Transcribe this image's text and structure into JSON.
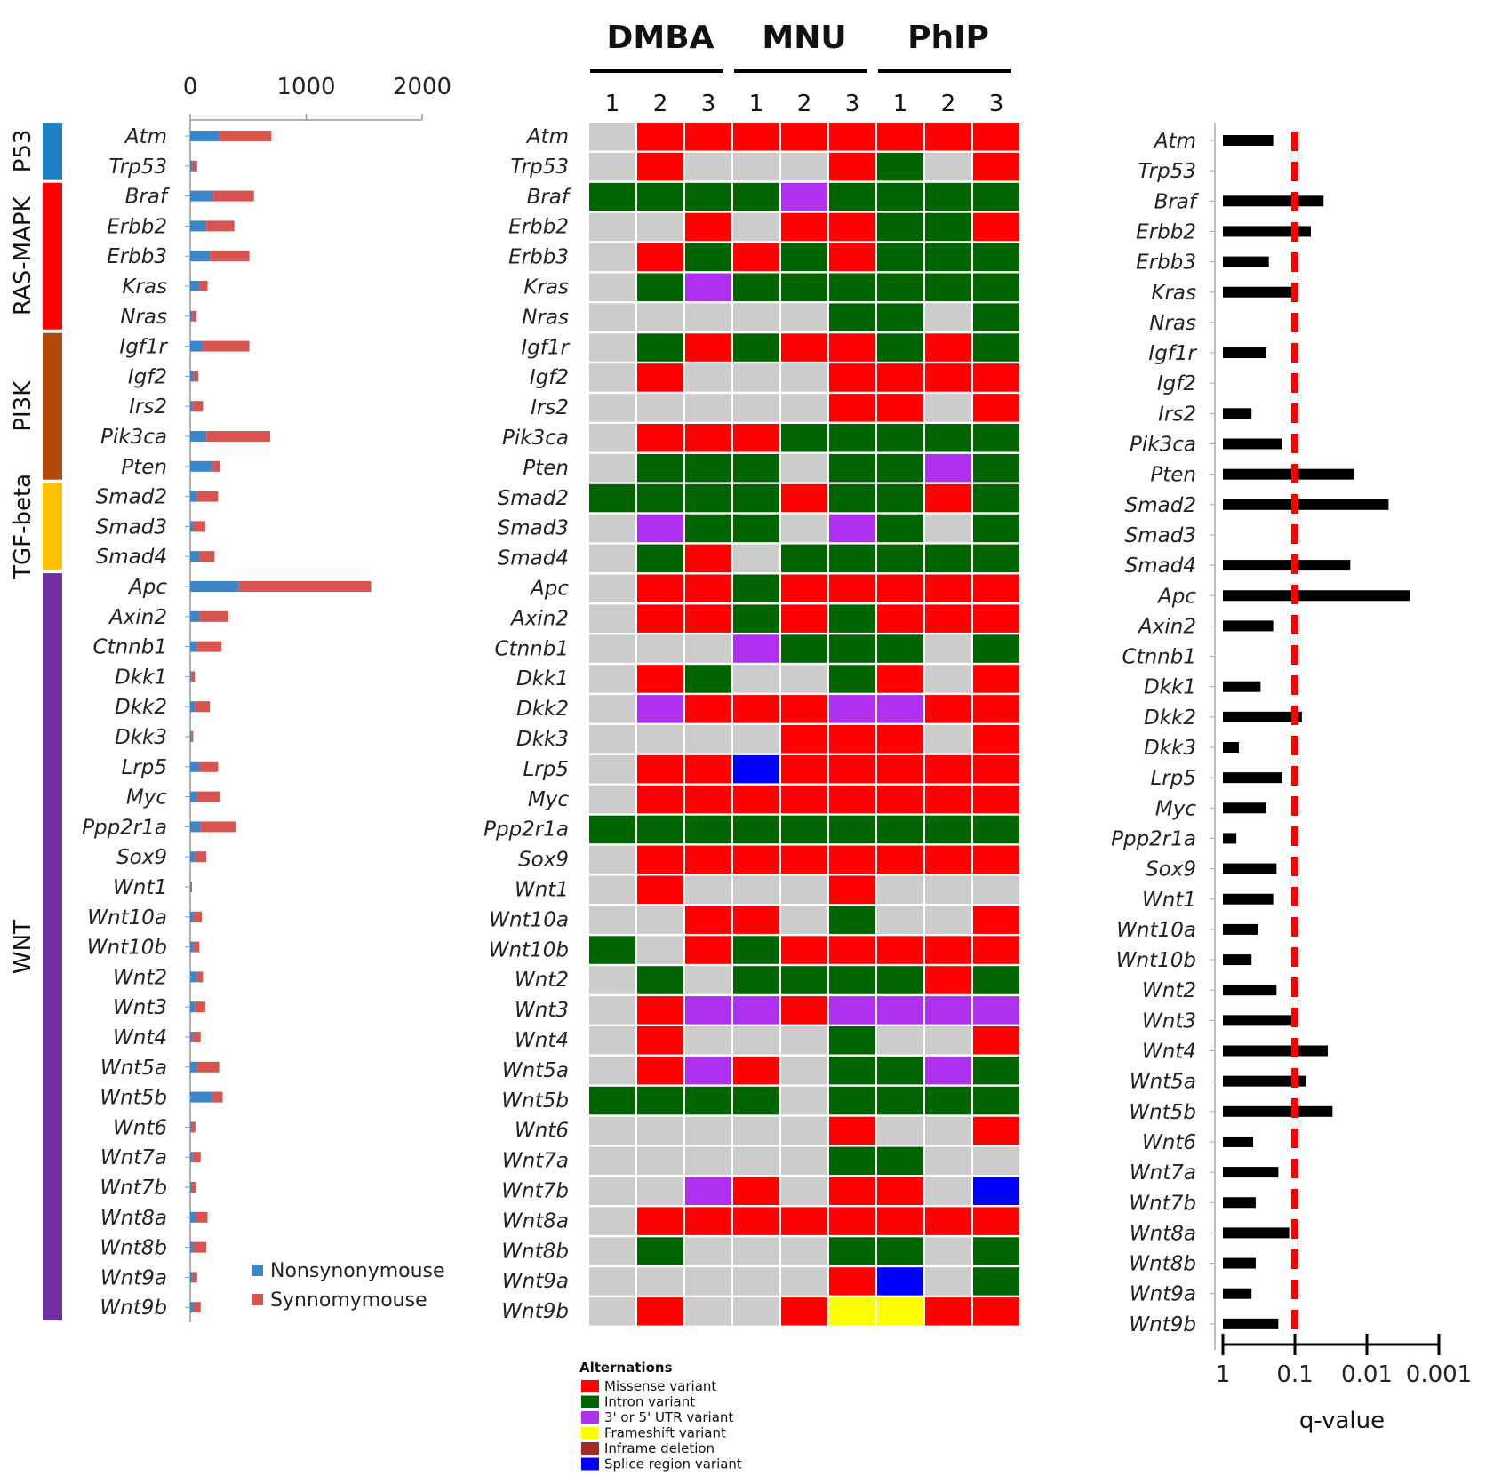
{
  "chart_data": [
    {
      "type": "bar",
      "stacked": true,
      "orientation": "horizontal",
      "categories": [
        "Atm",
        "Trp53",
        "Braf",
        "Erbb2",
        "Erbb3",
        "Kras",
        "Nras",
        "Igf1r",
        "Igf2",
        "Irs2",
        "Pik3ca",
        "Pten",
        "Smad2",
        "Smad3",
        "Smad4",
        "Apc",
        "Axin2",
        "Ctnnb1",
        "Dkk1",
        "Dkk2",
        "Dkk3",
        "Lrp5",
        "Myc",
        "Ppp2r1a",
        "Sox9",
        "Wnt1",
        "Wnt10a",
        "Wnt10b",
        "Wnt2",
        "Wnt3",
        "Wnt4",
        "Wnt5a",
        "Wnt5b",
        "Wnt6",
        "Wnt7a",
        "Wnt7b",
        "Wnt8a",
        "Wnt8b",
        "Wnt9a",
        "Wnt9b"
      ],
      "series": [
        {
          "name": "Nonsynonymouse",
          "color": "#3a86c8",
          "values": [
            250,
            20,
            200,
            140,
            170,
            80,
            20,
            110,
            30,
            20,
            140,
            190,
            60,
            30,
            80,
            420,
            80,
            60,
            10,
            40,
            10,
            80,
            60,
            90,
            40,
            5,
            30,
            25,
            60,
            40,
            20,
            60,
            190,
            15,
            20,
            15,
            50,
            30,
            20,
            30
          ]
        },
        {
          "name": "Synnomymouse",
          "color": "#d9534f",
          "values": [
            450,
            40,
            350,
            240,
            340,
            70,
            35,
            400,
            40,
            90,
            550,
            70,
            180,
            100,
            130,
            1140,
            250,
            210,
            30,
            130,
            15,
            160,
            200,
            300,
            100,
            10,
            70,
            55,
            50,
            90,
            70,
            190,
            90,
            30,
            70,
            35,
            100,
            110,
            40,
            60
          ]
        }
      ],
      "xlim": [
        0,
        2000
      ],
      "xticks": [
        "0",
        "1000",
        "2000"
      ],
      "legend_position": "bottom-right",
      "pathways": [
        {
          "name": "P53",
          "color": "#1f7fc4",
          "from": 0,
          "to": 1
        },
        {
          "name": "RAS-MAPK",
          "color": "#ff0000",
          "from": 2,
          "to": 6
        },
        {
          "name": "PI3K",
          "color": "#b24a0b",
          "from": 7,
          "to": 11
        },
        {
          "name": "TGF-beta",
          "color": "#ffc000",
          "from": 12,
          "to": 14
        },
        {
          "name": "WNT",
          "color": "#7030a0",
          "from": 15,
          "to": 39
        }
      ]
    },
    {
      "type": "heatmap",
      "rows": [
        "Atm",
        "Trp53",
        "Braf",
        "Erbb2",
        "Erbb3",
        "Kras",
        "Nras",
        "Igf1r",
        "Igf2",
        "Irs2",
        "Pik3ca",
        "Pten",
        "Smad2",
        "Smad3",
        "Smad4",
        "Apc",
        "Axin2",
        "Ctnnb1",
        "Dkk1",
        "Dkk2",
        "Dkk3",
        "Lrp5",
        "Myc",
        "Ppp2r1a",
        "Sox9",
        "Wnt1",
        "Wnt10a",
        "Wnt10b",
        "Wnt2",
        "Wnt3",
        "Wnt4",
        "Wnt5a",
        "Wnt5b",
        "Wnt6",
        "Wnt7a",
        "Wnt7b",
        "Wnt8a",
        "Wnt8b",
        "Wnt9a",
        "Wnt9b"
      ],
      "groups": [
        {
          "name": "DMBA",
          "samples": [
            "1",
            "2",
            "3"
          ]
        },
        {
          "name": "MNU",
          "samples": [
            "1",
            "2",
            "3"
          ]
        },
        {
          "name": "PhIP",
          "samples": [
            "1",
            "2",
            "3"
          ]
        }
      ],
      "cells": [
        "NMMMMMMMM",
        "NMNNNMINM",
        "IIIIUIIII",
        "NNMNMMIIM",
        "NMIMIMIII",
        "NIUIIIIII",
        "NNNNNIINI",
        "NIMIMMIMI",
        "NMNNNMMMM",
        "NNNNNMMNM",
        "NMMMIIIII",
        "NIIINIIUI",
        "IIIIMIIMI",
        "NUIINUINI",
        "NIMNIIIII",
        "NMMIMMMMM",
        "NMMIMIMMM",
        "NNNUIIINI",
        "NMINNIMNM",
        "NUMMMUUMM",
        "NNNNMMMNM",
        "NMMSMMMMM",
        "NMMMMMMMM",
        "IIIIIIIII",
        "NMMMMMMMM",
        "NMNNNMNNN",
        "NNMMNINNM",
        "INMIMMMMM",
        "NINIIIIMI",
        "NMUUMUUUU",
        "NMNNNINNM",
        "NMUMNIIUI",
        "IIIINIIII",
        "NNNNNMNNM",
        "NNNNNIINN",
        "NNUMNMMNS",
        "NMMMMMMMM",
        "NINNNIINI",
        "NNNNNMSNI",
        "NMNNMFFMM"
      ],
      "legend_title": "Alternations",
      "legend": [
        {
          "label": "Missense variant",
          "color": "#ff0000"
        },
        {
          "label": "Intron variant",
          "color": "#006400"
        },
        {
          "label": "3' or 5' UTR variant",
          "color": "#b030f0"
        },
        {
          "label": "Frameshift variant",
          "color": "#ffff00"
        },
        {
          "label": "Inframe deletion",
          "color": "#a52a2a"
        },
        {
          "label": "Splice region variant",
          "color": "#0000ff"
        }
      ],
      "no_alteration_color": "#cccccc"
    },
    {
      "type": "bar",
      "orientation": "horizontal",
      "categories": [
        "Atm",
        "Trp53",
        "Braf",
        "Erbb2",
        "Erbb3",
        "Kras",
        "Nras",
        "Igf1r",
        "Igf2",
        "Irs2",
        "Pik3ca",
        "Pten",
        "Smad2",
        "Smad3",
        "Smad4",
        "Apc",
        "Axin2",
        "Ctnnb1",
        "Dkk1",
        "Dkk2",
        "Dkk3",
        "Lrp5",
        "Myc",
        "Ppp2r1a",
        "Sox9",
        "Wnt1",
        "Wnt10a",
        "Wnt10b",
        "Wnt2",
        "Wnt3",
        "Wnt4",
        "Wnt5a",
        "Wnt5b",
        "Wnt6",
        "Wnt7a",
        "Wnt7b",
        "Wnt8a",
        "Wnt8b",
        "Wnt9a",
        "Wnt9b"
      ],
      "values": [
        0.2,
        1,
        0.04,
        0.06,
        0.23,
        0.1,
        1,
        0.25,
        1,
        0.4,
        0.15,
        0.015,
        0.005,
        1,
        0.017,
        0.0025,
        0.2,
        1,
        0.3,
        0.08,
        0.6,
        0.15,
        0.25,
        0.65,
        0.18,
        0.2,
        0.33,
        0.4,
        0.18,
        0.11,
        0.035,
        0.07,
        0.03,
        0.38,
        0.17,
        0.35,
        0.12,
        0.35,
        0.4,
        0.17
      ],
      "xlabel": "q-value",
      "xscale": "log",
      "xreversed": true,
      "xlim": [
        1,
        0.001
      ],
      "xticks": [
        "1",
        "0.1",
        "0.01",
        "0.001"
      ],
      "threshold": 0.1,
      "bar_color": "#000000",
      "threshold_color": "#ff0000"
    }
  ]
}
